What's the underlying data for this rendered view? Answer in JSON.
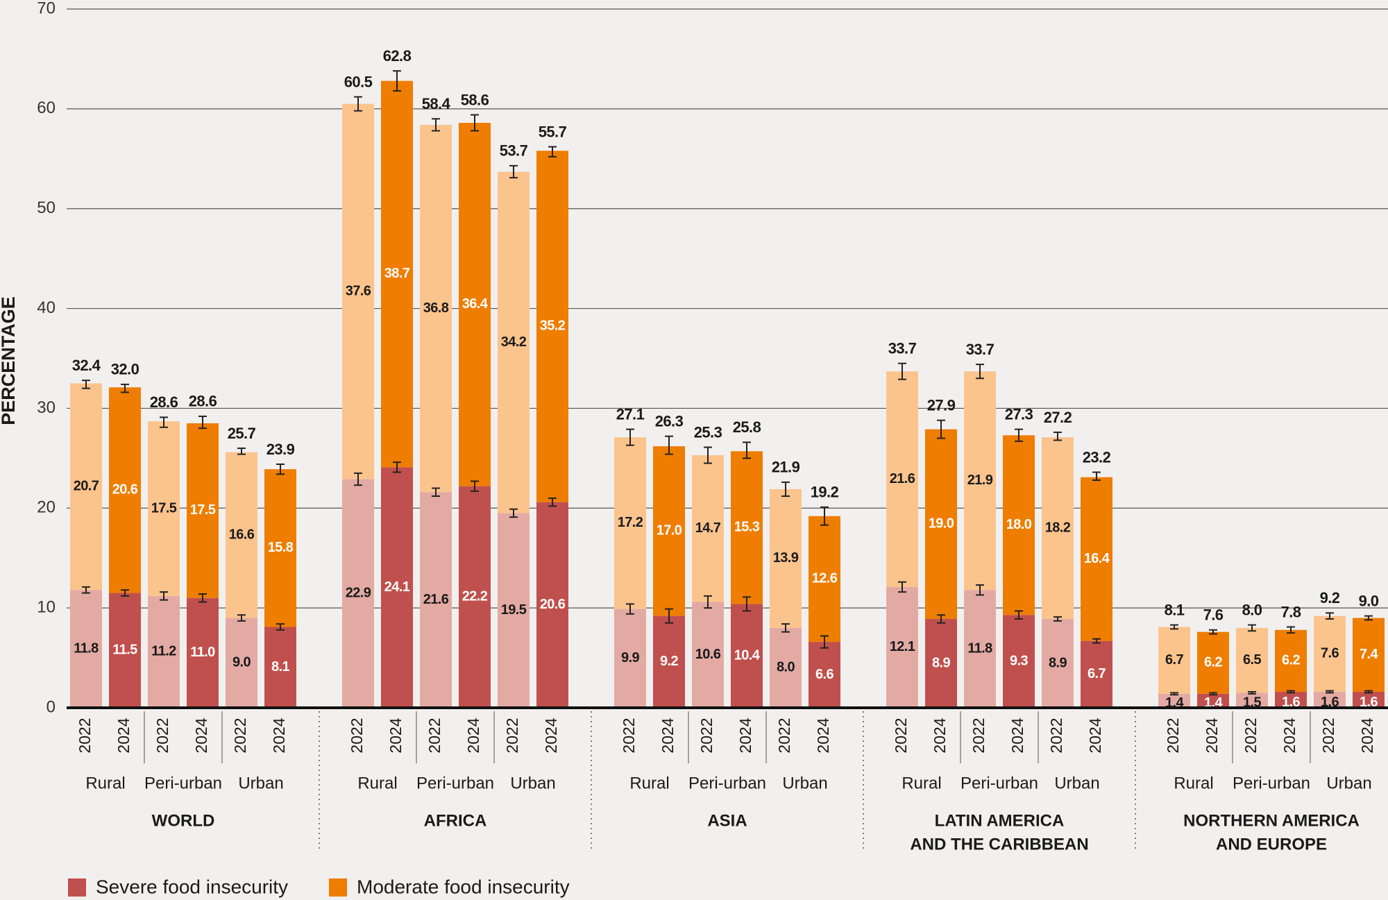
{
  "chart_data": {
    "type": "bar",
    "stacked": true,
    "y_label": "PERCENTAGE",
    "categories": [
      "2022",
      "2024",
      "2022",
      "2024",
      "2022",
      "2024",
      "2022",
      "2024",
      "2022",
      "2024",
      "2022",
      "2024",
      "2022",
      "2024",
      "2022",
      "2024",
      "2022",
      "2024",
      "2022",
      "2024",
      "2022",
      "2024",
      "2022",
      "2024",
      "2022",
      "2024",
      "2022",
      "2024",
      "2022",
      "2024"
    ],
    "area_labels": [
      "Rural",
      "Peri-urban",
      "Urban",
      "Rural",
      "Peri-urban",
      "Urban",
      "Rural",
      "Peri-urban",
      "Urban",
      "Rural",
      "Peri-urban",
      "Urban",
      "Rural",
      "Peri-urban",
      "Urban"
    ],
    "region_labels": [
      [
        "WORLD"
      ],
      [
        "AFRICA"
      ],
      [
        "ASIA"
      ],
      [
        "LATIN AMERICA",
        "AND THE CARIBBEAN"
      ],
      [
        "NORTHERN AMERICA",
        "AND EUROPE"
      ]
    ],
    "light_for": "2022",
    "series": [
      {
        "name": "Severe food insecurity",
        "color": "#c0504d",
        "light_color": "#e3aaa4",
        "values": [
          11.8,
          11.5,
          11.2,
          11.0,
          9.0,
          8.1,
          22.9,
          24.1,
          21.6,
          22.2,
          19.5,
          20.6,
          9.9,
          9.2,
          10.6,
          10.4,
          8.0,
          6.6,
          12.1,
          8.9,
          11.8,
          9.3,
          8.9,
          6.7,
          1.4,
          1.4,
          1.5,
          1.6,
          1.6,
          1.6
        ],
        "value_labels": [
          "11.8",
          "11.5",
          "11.2",
          "11.0",
          "9.0",
          "8.1",
          "22.9",
          "24.1",
          "21.6",
          "22.2",
          "19.5",
          "20.6",
          "9.9",
          "9.2",
          "10.6",
          "10.4",
          "8.0",
          "6.6",
          "12.1",
          "8.9",
          "11.8",
          "9.3",
          "8.9",
          "6.7",
          "1.4",
          "1.4",
          "1.5",
          "1.6",
          "1.6",
          "1.6"
        ],
        "errors": [
          0.3,
          0.3,
          0.4,
          0.4,
          0.3,
          0.3,
          0.6,
          0.5,
          0.4,
          0.5,
          0.4,
          0.4,
          0.5,
          0.7,
          0.6,
          0.7,
          0.4,
          0.6,
          0.5,
          0.4,
          0.5,
          0.4,
          0.2,
          0.2,
          0.1,
          0.1,
          0.1,
          0.1,
          0.1,
          0.1
        ]
      },
      {
        "name": "Moderate food insecurity",
        "color": "#ef7d00",
        "light_color": "#fbc48d",
        "values": [
          20.7,
          20.6,
          17.5,
          17.5,
          16.6,
          15.8,
          37.6,
          38.7,
          36.8,
          36.4,
          34.2,
          35.2,
          17.2,
          17.0,
          14.7,
          15.3,
          13.9,
          12.6,
          21.6,
          19.0,
          21.9,
          18.0,
          18.2,
          16.4,
          6.7,
          6.2,
          6.5,
          6.2,
          7.6,
          7.4
        ],
        "value_labels": [
          "20.7",
          "20.6",
          "17.5",
          "17.5",
          "16.6",
          "15.8",
          "37.6",
          "38.7",
          "36.8",
          "36.4",
          "34.2",
          "35.2",
          "17.2",
          "17.0",
          "14.7",
          "15.3",
          "13.9",
          "12.6",
          "21.6",
          "19.0",
          "21.9",
          "18.0",
          "18.2",
          "16.4",
          "6.7",
          "6.2",
          "6.5",
          "6.2",
          "7.6",
          "7.4"
        ]
      }
    ],
    "totals": [
      32.4,
      32.0,
      28.6,
      28.6,
      25.7,
      23.9,
      60.5,
      62.8,
      58.4,
      58.6,
      53.7,
      55.7,
      27.1,
      26.3,
      25.3,
      25.8,
      21.9,
      19.2,
      33.7,
      27.9,
      33.7,
      27.3,
      27.2,
      23.2,
      8.1,
      7.6,
      8.0,
      7.8,
      9.2,
      9.0
    ],
    "total_labels": [
      "32.4",
      "32.0",
      "28.6",
      "28.6",
      "25.7",
      "23.9",
      "60.5",
      "62.8",
      "58.4",
      "58.6",
      "53.7",
      "55.7",
      "27.1",
      "26.3",
      "25.3",
      "25.8",
      "21.9",
      "19.2",
      "33.7",
      "27.9",
      "33.7",
      "27.3",
      "27.2",
      "23.2",
      "8.1",
      "7.6",
      "8.0",
      "7.8",
      "9.2",
      "9.0"
    ],
    "total_errors": [
      0.4,
      0.4,
      0.5,
      0.6,
      0.3,
      0.5,
      0.7,
      1.0,
      0.6,
      0.8,
      0.6,
      0.5,
      0.8,
      0.9,
      0.8,
      0.8,
      0.7,
      0.9,
      0.8,
      0.9,
      0.7,
      0.6,
      0.4,
      0.4,
      0.2,
      0.2,
      0.3,
      0.3,
      0.3,
      0.2
    ],
    "ylim": [
      0,
      70
    ],
    "yticks": [
      0,
      10,
      20,
      30,
      40,
      50,
      60,
      70
    ],
    "grid": true,
    "legend": "bottom-left"
  }
}
